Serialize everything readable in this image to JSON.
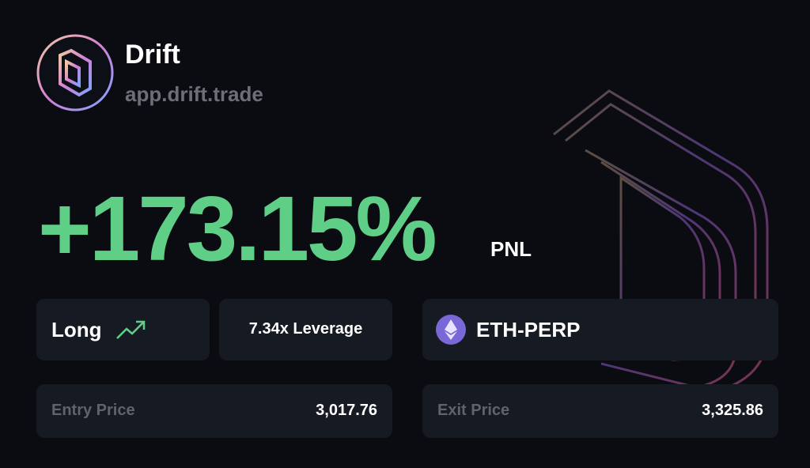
{
  "brand": {
    "name": "Drift",
    "url": "app.drift.trade"
  },
  "pnl": {
    "value": "+173.15%",
    "label": "PNL"
  },
  "position": {
    "direction": "Long",
    "leverage": "7.34x Leverage",
    "market": "ETH-PERP"
  },
  "prices": {
    "entry_label": "Entry Price",
    "entry": "3,017.76",
    "exit_label": "Exit Price",
    "exit": "3,325.86"
  }
}
